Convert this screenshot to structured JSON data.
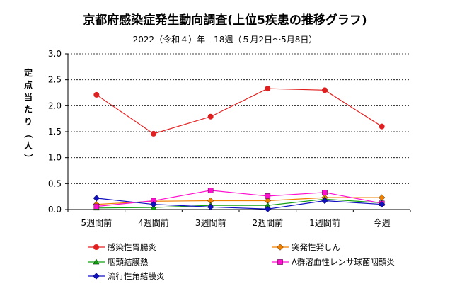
{
  "chart_data": {
    "type": "line",
    "title": "京都府感染症発生動向調査(上位5疾患の推移グラフ)",
    "subtitle": "2022（令和４）年　18週（５月2日～5月8日）",
    "ylabel": "定点当たり（人）",
    "ylim": [
      0,
      3.0
    ],
    "yticks": [
      "0.0",
      "0.5",
      "1.0",
      "1.5",
      "2.0",
      "2.5",
      "3.0"
    ],
    "grid": true,
    "legend_position": "bottom",
    "categories": [
      "5週間前",
      "4週間前",
      "3週間前",
      "2週間前",
      "1週間前",
      "今週"
    ],
    "series": [
      {
        "name": "感染性胃腸炎",
        "color": "#e02020",
        "marker": "circle",
        "values": [
          2.21,
          1.46,
          1.79,
          2.33,
          2.3,
          1.6
        ]
      },
      {
        "name": "突発性発しん",
        "color": "#f08000",
        "marker": "diamond",
        "values": [
          0.1,
          0.16,
          0.17,
          0.17,
          0.23,
          0.23
        ]
      },
      {
        "name": "咽頭結膜熱",
        "color": "#10a010",
        "marker": "triangle",
        "values": [
          0.03,
          0.04,
          0.08,
          0.08,
          0.2,
          0.13
        ]
      },
      {
        "name": "A群溶血性レンサ球菌咽頭炎",
        "color": "#ff10d0",
        "marker": "square",
        "values": [
          0.06,
          0.17,
          0.37,
          0.26,
          0.33,
          0.12
        ]
      },
      {
        "name": "流行性角結膜炎",
        "color": "#1010c0",
        "marker": "diamond",
        "values": [
          0.22,
          0.1,
          0.05,
          0.01,
          0.17,
          0.1
        ]
      }
    ]
  }
}
